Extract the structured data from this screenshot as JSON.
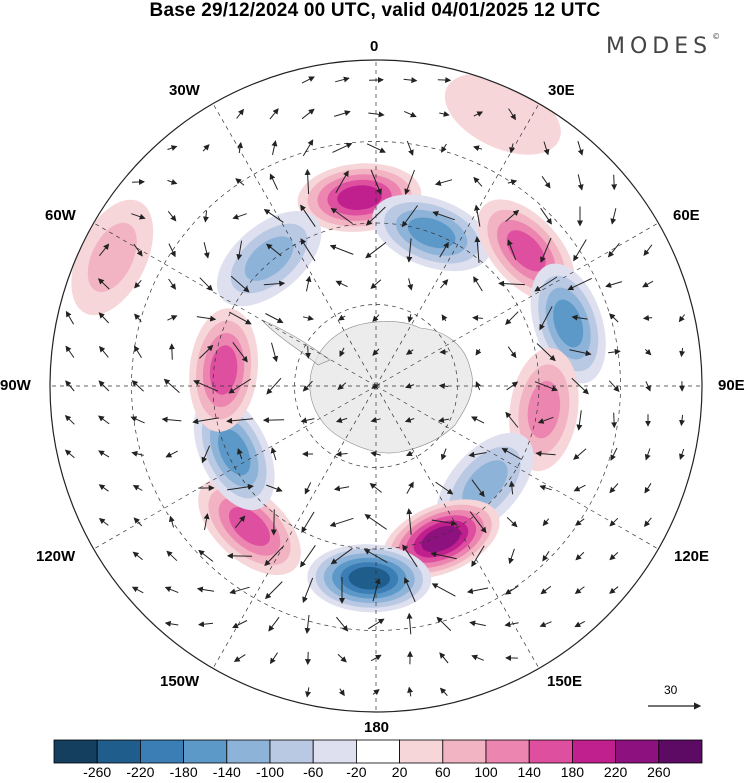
{
  "title": "Base 29/12/2024 00 UTC, valid 04/01/2025 12 UTC",
  "brand": "MODES",
  "brand_mark": "©",
  "longitude_labels": {
    "lon_0": "0",
    "lon_30e": "30E",
    "lon_60e": "60E",
    "lon_90e": "90E",
    "lon_120e": "120E",
    "lon_150e": "150E",
    "lon_180": "180",
    "lon_150w": "150W",
    "lon_120w": "120W",
    "lon_90w": "90W",
    "lon_60w": "60W",
    "lon_30w": "30W"
  },
  "reference_vector": {
    "value": "30"
  },
  "colorbar": {
    "labels": [
      "-260",
      "-220",
      "-180",
      "-140",
      "-100",
      "-60",
      "-20",
      "20",
      "60",
      "100",
      "140",
      "180",
      "220",
      "260"
    ],
    "colors": [
      "#143f5f",
      "#1f5e8c",
      "#3b7db5",
      "#5d99c8",
      "#8eb3d8",
      "#b9c9e3",
      "#dfe0ef",
      "#ffffff",
      "#f7d6d9",
      "#f2b4c2",
      "#ec86b0",
      "#de4fa0",
      "#c01f8e",
      "#8e1180",
      "#5c0a63"
    ]
  },
  "anomaly_centers": [
    {
      "lon": 355,
      "dist": 0.58,
      "value": 200
    },
    {
      "lon": 20,
      "dist": 0.5,
      "value": -150
    },
    {
      "lon": 48,
      "dist": 0.62,
      "value": 160
    },
    {
      "lon": 72,
      "dist": 0.62,
      "value": -140
    },
    {
      "lon": 98,
      "dist": 0.52,
      "value": 120
    },
    {
      "lon": 132,
      "dist": 0.45,
      "value": -120
    },
    {
      "lon": 157,
      "dist": 0.51,
      "value": 230
    },
    {
      "lon": 182,
      "dist": 0.59,
      "value": -220
    },
    {
      "lon": 222,
      "dist": 0.58,
      "value": 150
    },
    {
      "lon": 245,
      "dist": 0.48,
      "value": -140
    },
    {
      "lon": 276,
      "dist": 0.47,
      "value": 160
    },
    {
      "lon": 320,
      "dist": 0.51,
      "value": -130
    },
    {
      "lon": 296,
      "dist": 0.9,
      "value": 70
    },
    {
      "lon": 25,
      "dist": 0.92,
      "value": 40
    }
  ]
}
